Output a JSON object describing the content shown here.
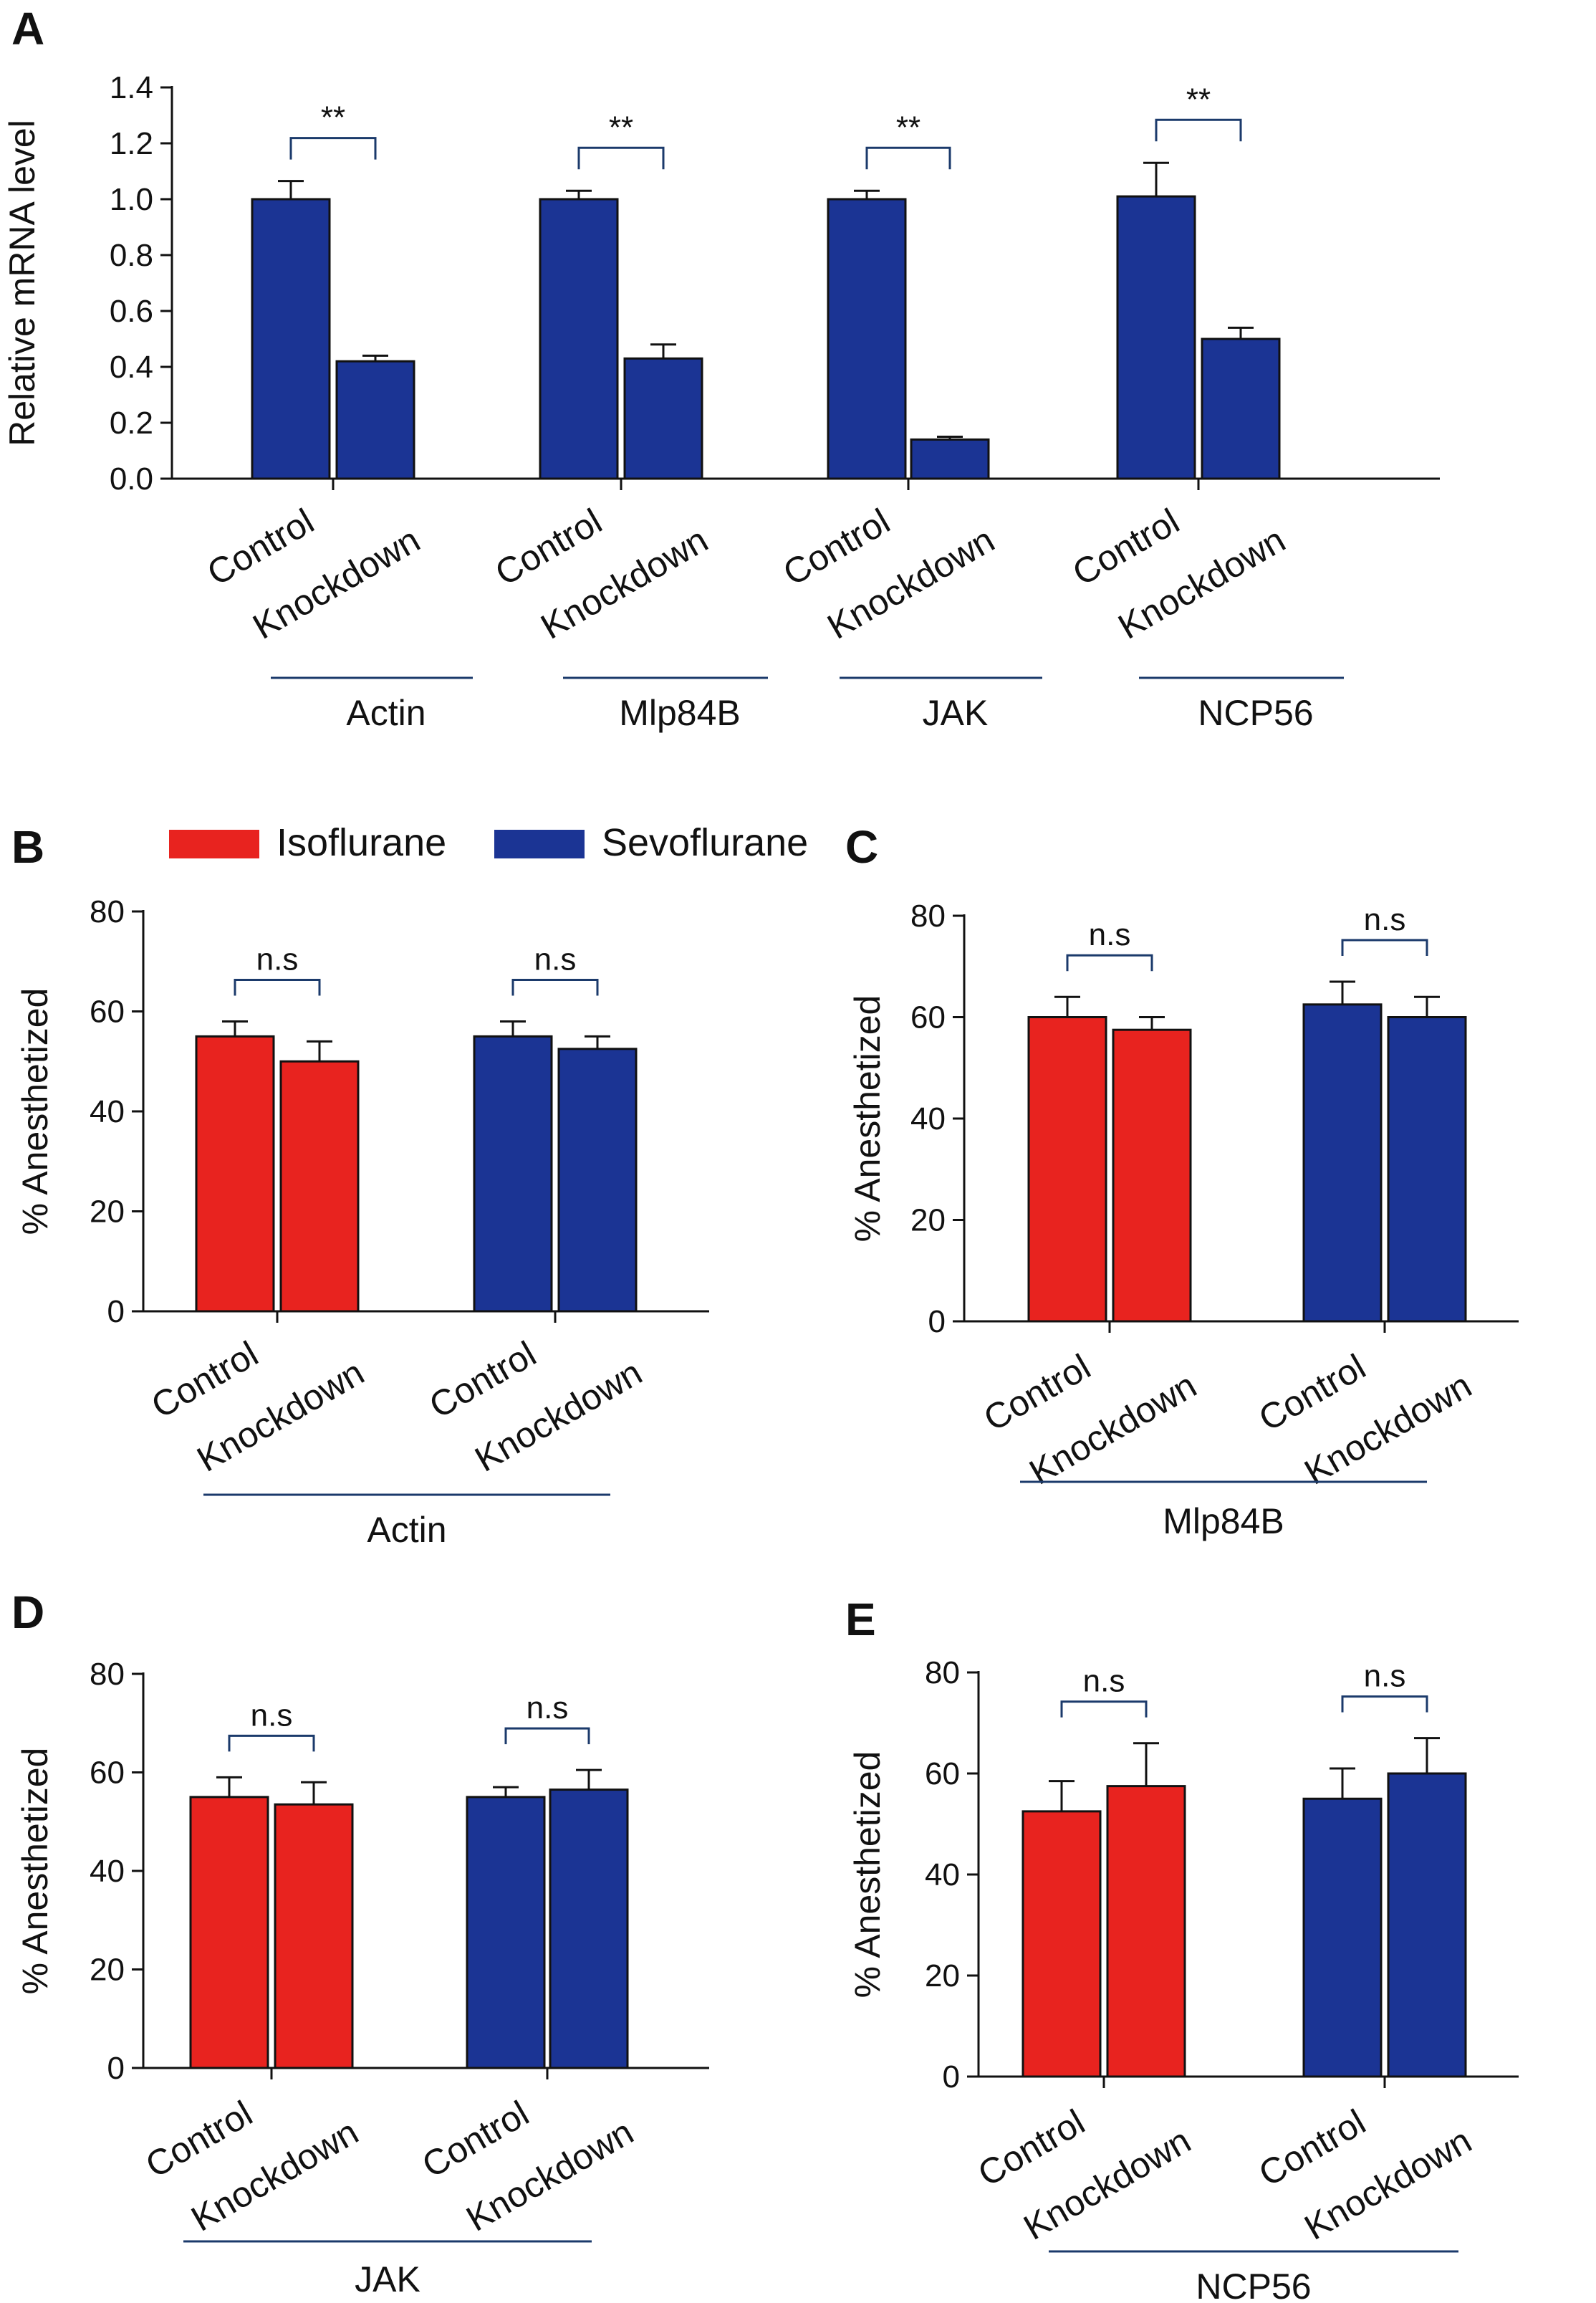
{
  "colors": {
    "isoflurane": "#e8231f",
    "sevoflurane": "#1b3494",
    "group_line": "#1b3a6b",
    "axis": "#111111"
  },
  "legend": [
    {
      "label": "Isoflurane",
      "color": "#e8231f"
    },
    {
      "label": "Sevoflurane",
      "color": "#1b3494"
    }
  ],
  "chart_data": [
    {
      "panel": "A",
      "type": "bar",
      "ylabel": "Relative mRNA level",
      "ylim": [
        0,
        1.4
      ],
      "yticks": [
        "0.0",
        "0.2",
        "0.4",
        "0.6",
        "0.8",
        "1.0",
        "1.2",
        "1.4"
      ],
      "groups": [
        {
          "name": "Actin",
          "bars": [
            {
              "label": "Control",
              "value": 1.0,
              "err": 0.065,
              "series": "sevoflurane"
            },
            {
              "label": "Knockdown",
              "value": 0.42,
              "err": 0.02,
              "series": "sevoflurane"
            }
          ],
          "sig": "**"
        },
        {
          "name": "Mlp84B",
          "bars": [
            {
              "label": "Control",
              "value": 1.0,
              "err": 0.03,
              "series": "sevoflurane"
            },
            {
              "label": "Knockdown",
              "value": 0.43,
              "err": 0.05,
              "series": "sevoflurane"
            }
          ],
          "sig": "**"
        },
        {
          "name": "JAK",
          "bars": [
            {
              "label": "Control",
              "value": 1.0,
              "err": 0.03,
              "series": "sevoflurane"
            },
            {
              "label": "Knockdown",
              "value": 0.14,
              "err": 0.01,
              "series": "sevoflurane"
            }
          ],
          "sig": "**"
        },
        {
          "name": "NCP56",
          "bars": [
            {
              "label": "Control",
              "value": 1.01,
              "err": 0.12,
              "series": "sevoflurane"
            },
            {
              "label": "Knockdown",
              "value": 0.5,
              "err": 0.04,
              "series": "sevoflurane"
            }
          ],
          "sig": "**"
        }
      ]
    },
    {
      "panel": "B",
      "type": "bar",
      "ylabel": "% Anesthetized",
      "ylim": [
        0,
        80
      ],
      "yticks": [
        "0",
        "20",
        "40",
        "60",
        "80"
      ],
      "gene": "Actin",
      "groups": [
        {
          "name": "Isoflurane",
          "bars": [
            {
              "label": "Control",
              "value": 55,
              "err": 3,
              "series": "isoflurane"
            },
            {
              "label": "Knockdown",
              "value": 50,
              "err": 4,
              "series": "isoflurane"
            }
          ],
          "sig": "n.s"
        },
        {
          "name": "Sevoflurane",
          "bars": [
            {
              "label": "Control",
              "value": 55,
              "err": 3,
              "series": "sevoflurane"
            },
            {
              "label": "Knockdown",
              "value": 52.5,
              "err": 2.5,
              "series": "sevoflurane"
            }
          ],
          "sig": "n.s"
        }
      ]
    },
    {
      "panel": "C",
      "type": "bar",
      "ylabel": "% Anesthetized",
      "ylim": [
        0,
        80
      ],
      "yticks": [
        "0",
        "20",
        "40",
        "60",
        "80"
      ],
      "gene": "Mlp84B",
      "groups": [
        {
          "name": "Isoflurane",
          "bars": [
            {
              "label": "Control",
              "value": 60,
              "err": 4,
              "series": "isoflurane"
            },
            {
              "label": "Knockdown",
              "value": 57.5,
              "err": 2.5,
              "series": "isoflurane"
            }
          ],
          "sig": "n.s"
        },
        {
          "name": "Sevoflurane",
          "bars": [
            {
              "label": "Control",
              "value": 62.5,
              "err": 4.5,
              "series": "sevoflurane"
            },
            {
              "label": "Knockdown",
              "value": 60,
              "err": 4,
              "series": "sevoflurane"
            }
          ],
          "sig": "n.s"
        }
      ]
    },
    {
      "panel": "D",
      "type": "bar",
      "ylabel": "% Anesthetized",
      "ylim": [
        0,
        80
      ],
      "yticks": [
        "0",
        "20",
        "40",
        "60",
        "80"
      ],
      "gene": "JAK",
      "groups": [
        {
          "name": "Isoflurane",
          "bars": [
            {
              "label": "Control",
              "value": 55,
              "err": 4,
              "series": "isoflurane"
            },
            {
              "label": "Knockdown",
              "value": 53.5,
              "err": 4.5,
              "series": "isoflurane"
            }
          ],
          "sig": "n.s"
        },
        {
          "name": "Sevoflurane",
          "bars": [
            {
              "label": "Control",
              "value": 55,
              "err": 2,
              "series": "sevoflurane"
            },
            {
              "label": "Knockdown",
              "value": 56.5,
              "err": 4,
              "series": "sevoflurane"
            }
          ],
          "sig": "n.s"
        }
      ]
    },
    {
      "panel": "E",
      "type": "bar",
      "ylabel": "% Anesthetized",
      "ylim": [
        0,
        80
      ],
      "yticks": [
        "0",
        "20",
        "40",
        "60",
        "80"
      ],
      "gene": "NCP56",
      "groups": [
        {
          "name": "Isoflurane",
          "bars": [
            {
              "label": "Control",
              "value": 52.5,
              "err": 6,
              "series": "isoflurane"
            },
            {
              "label": "Knockdown",
              "value": 57.5,
              "err": 8.5,
              "series": "isoflurane"
            }
          ],
          "sig": "n.s"
        },
        {
          "name": "Sevoflurane",
          "bars": [
            {
              "label": "Control",
              "value": 55,
              "err": 6,
              "series": "sevoflurane"
            },
            {
              "label": "Knockdown",
              "value": 60,
              "err": 7,
              "series": "sevoflurane"
            }
          ],
          "sig": "n.s"
        }
      ]
    }
  ]
}
